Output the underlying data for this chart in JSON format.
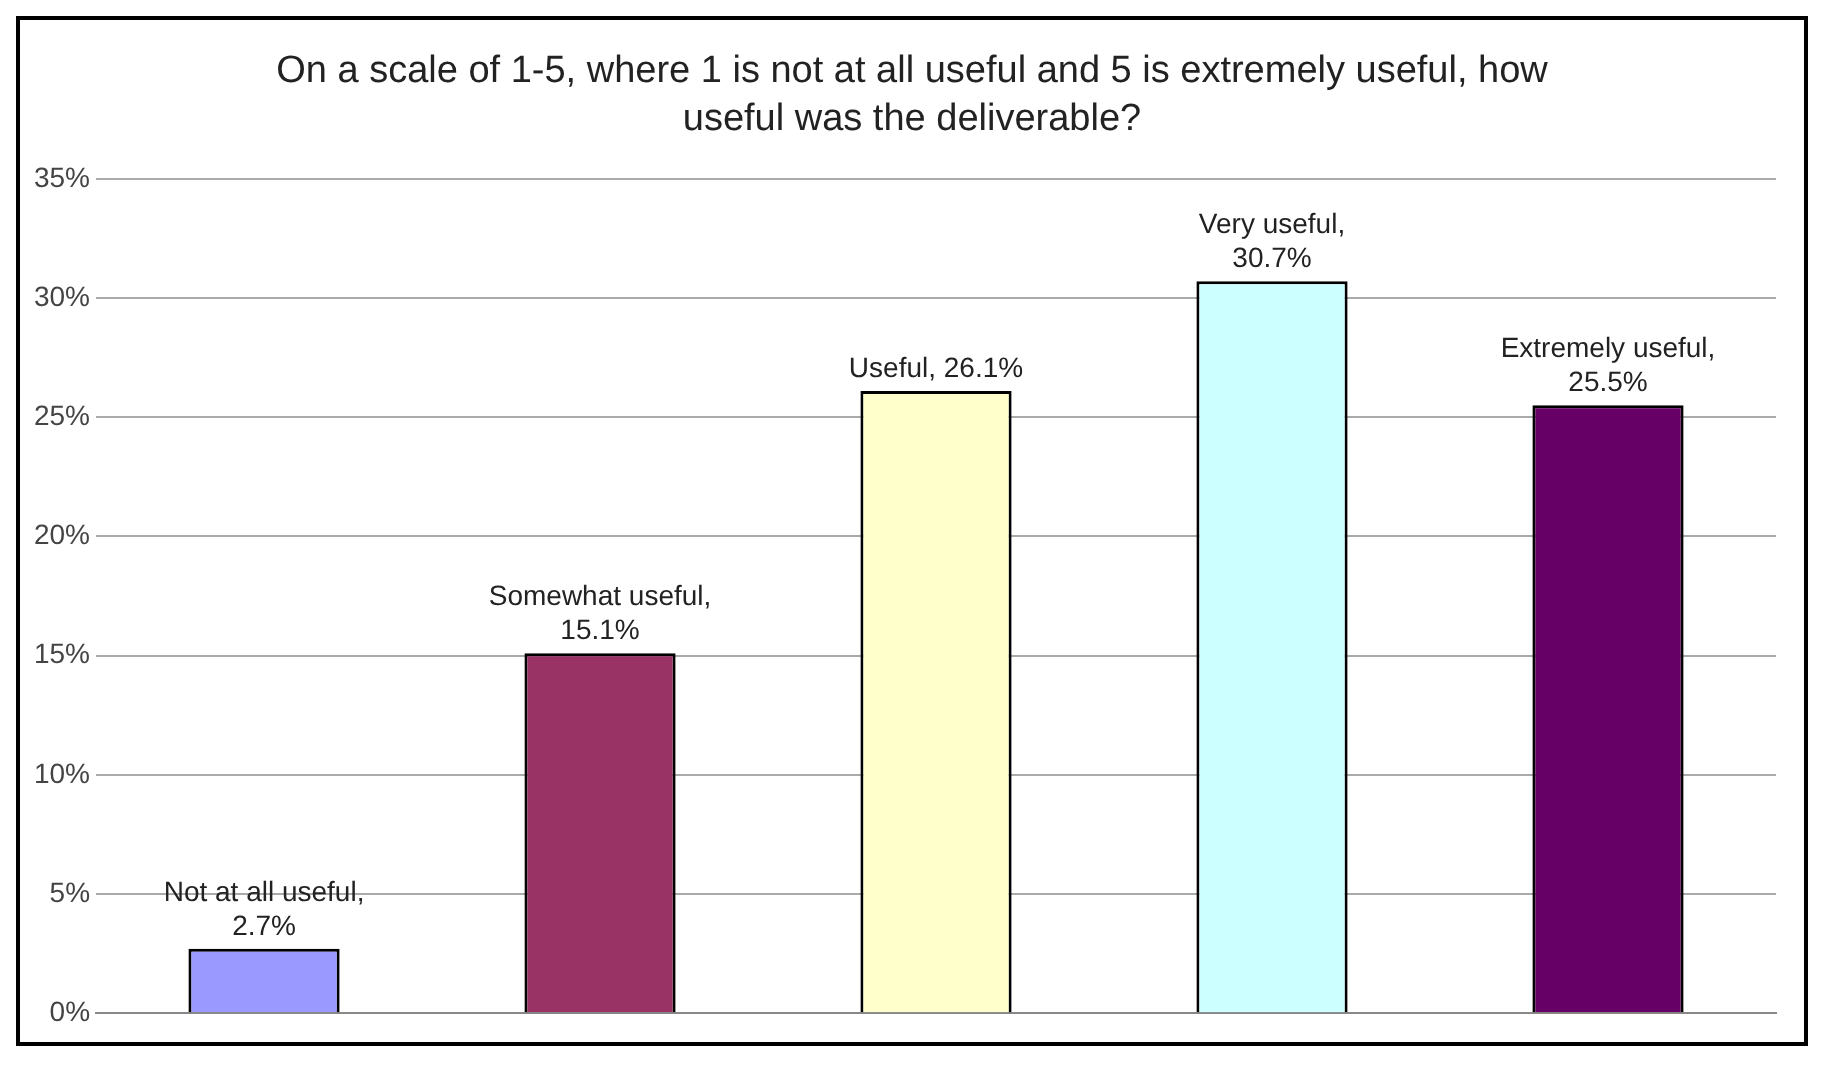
{
  "chart_data": {
    "type": "bar",
    "title": "On a scale of 1-5, where 1 is not at all useful and 5 is extremely useful, how useful was the deliverable?",
    "categories": [
      null,
      null,
      null,
      null,
      null
    ],
    "values": [
      2.7,
      15.1,
      26.1,
      30.7,
      25.5
    ],
    "colors": [
      "#9999ff",
      "#993366",
      "#ffffcc",
      "#ccffff",
      "#660066"
    ],
    "value_labels": [
      "Not at all useful, 2.7%",
      "Somewhat useful, 15.1%",
      "Useful, 26.1%",
      "Very useful, 30.7%",
      "Extremely useful, 25.5%"
    ],
    "ylim": [
      0,
      35
    ],
    "yticks": [
      {
        "value": 0,
        "label": "0%"
      },
      {
        "value": 5,
        "label": "5%"
      },
      {
        "value": 10,
        "label": "10%"
      },
      {
        "value": 15,
        "label": "15%"
      },
      {
        "value": 20,
        "label": "20%"
      },
      {
        "value": 25,
        "label": "25%"
      },
      {
        "value": 30,
        "label": "30%"
      },
      {
        "value": 35,
        "label": "35%"
      }
    ],
    "grid": "y",
    "legend": false
  }
}
